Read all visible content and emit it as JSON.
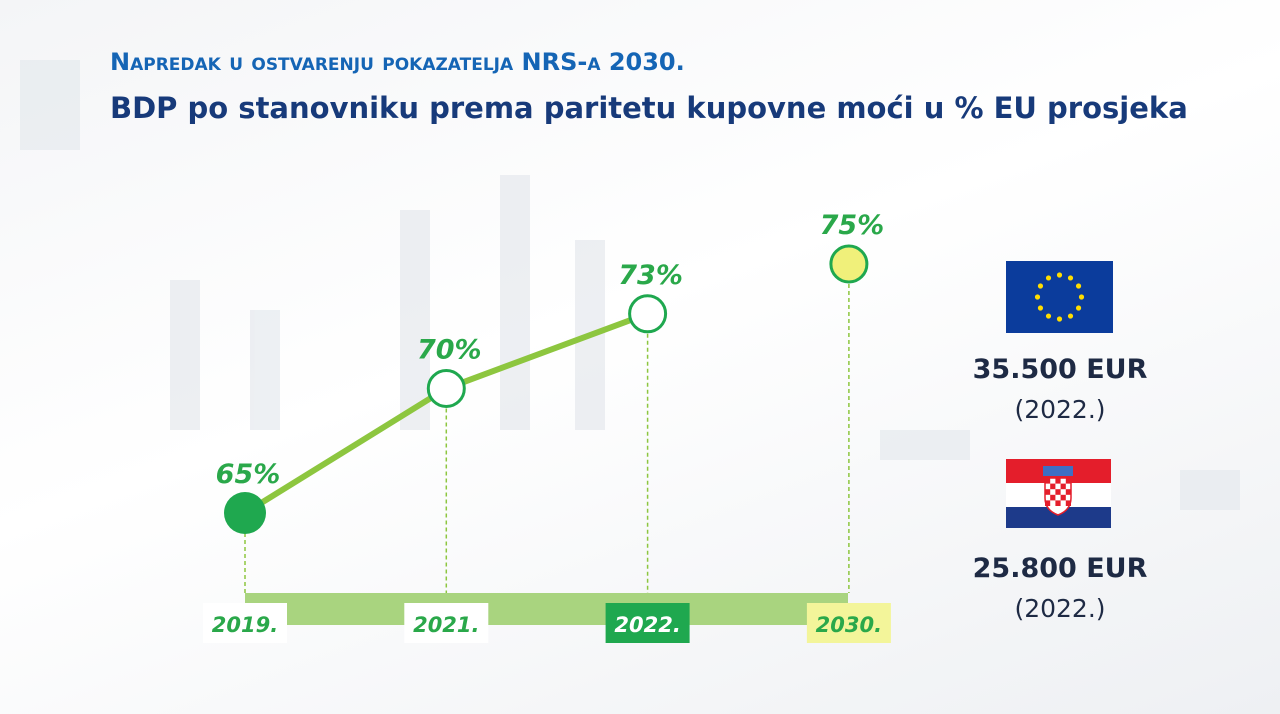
{
  "header": {
    "kicker": "Napredak u ostvarenju pokazatelja NRS-a 2030.",
    "title": "BDP po stanovniku prema paritetu kupovne moći u % EU prosjeka"
  },
  "chart_data": {
    "type": "line",
    "categories": [
      "2019.",
      "2021.",
      "2022.",
      "2030."
    ],
    "series": [
      {
        "color": "#8dc63f",
        "values": [
          65,
          70,
          73,
          null
        ],
        "value_labels": [
          "65%",
          "70%",
          "73%",
          null
        ]
      },
      {
        "color": "#f0f07a",
        "values": [
          null,
          null,
          null,
          75
        ],
        "value_labels": [
          null,
          null,
          null,
          "75%"
        ]
      }
    ]
  },
  "side": [
    {
      "value": "35.500 EUR",
      "year": "(2022.)"
    },
    {
      "value": "25.800 EUR",
      "year": "(2022.)"
    }
  ]
}
